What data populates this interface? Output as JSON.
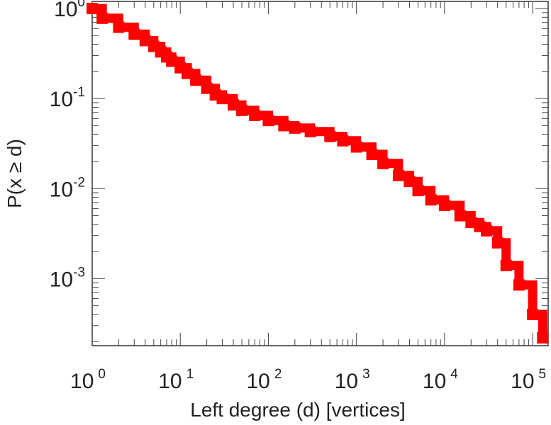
{
  "chart_data": {
    "type": "line",
    "title": "",
    "xlabel": "Left degree (d) [vertices]",
    "ylabel": "P(x ≥ d)",
    "xscale": "log",
    "yscale": "log",
    "xlim": [
      1,
      150000
    ],
    "ylim": [
      0.00018,
      1.2
    ],
    "grid": false,
    "legend": "none",
    "x_ticks": [
      {
        "base": "10",
        "exp": "0",
        "value": 1
      },
      {
        "base": "10",
        "exp": "1",
        "value": 10
      },
      {
        "base": "10",
        "exp": "2",
        "value": 100
      },
      {
        "base": "10",
        "exp": "3",
        "value": 1000
      },
      {
        "base": "10",
        "exp": "4",
        "value": 10000
      },
      {
        "base": "10",
        "exp": "5",
        "value": 100000
      }
    ],
    "y_ticks": [
      {
        "base": "10",
        "exp": "0",
        "value": 1
      },
      {
        "base": "10",
        "exp": "-1",
        "value": 0.1
      },
      {
        "base": "10",
        "exp": "-2",
        "value": 0.01
      },
      {
        "base": "10",
        "exp": "-3",
        "value": 0.001
      }
    ],
    "series": [
      {
        "color": "#ff0000",
        "x": [
          1,
          1.3,
          2,
          3,
          4,
          5,
          6,
          7,
          8,
          10,
          12,
          15,
          20,
          25,
          30,
          40,
          50,
          70,
          100,
          150,
          200,
          300,
          500,
          700,
          1000,
          1500,
          2000,
          3000,
          4000,
          5000,
          7000,
          10000,
          15000,
          20000,
          25000,
          30000,
          40000,
          50000,
          70000,
          100000,
          130000
        ],
        "y": [
          1,
          0.78,
          0.62,
          0.52,
          0.44,
          0.38,
          0.33,
          0.29,
          0.26,
          0.22,
          0.19,
          0.16,
          0.13,
          0.11,
          0.1,
          0.085,
          0.074,
          0.065,
          0.057,
          0.05,
          0.047,
          0.043,
          0.038,
          0.034,
          0.029,
          0.024,
          0.019,
          0.014,
          0.012,
          0.0095,
          0.0075,
          0.0065,
          0.005,
          0.0042,
          0.0038,
          0.0034,
          0.0025,
          0.0014,
          0.00085,
          0.0004,
          0.00022
        ]
      }
    ]
  }
}
